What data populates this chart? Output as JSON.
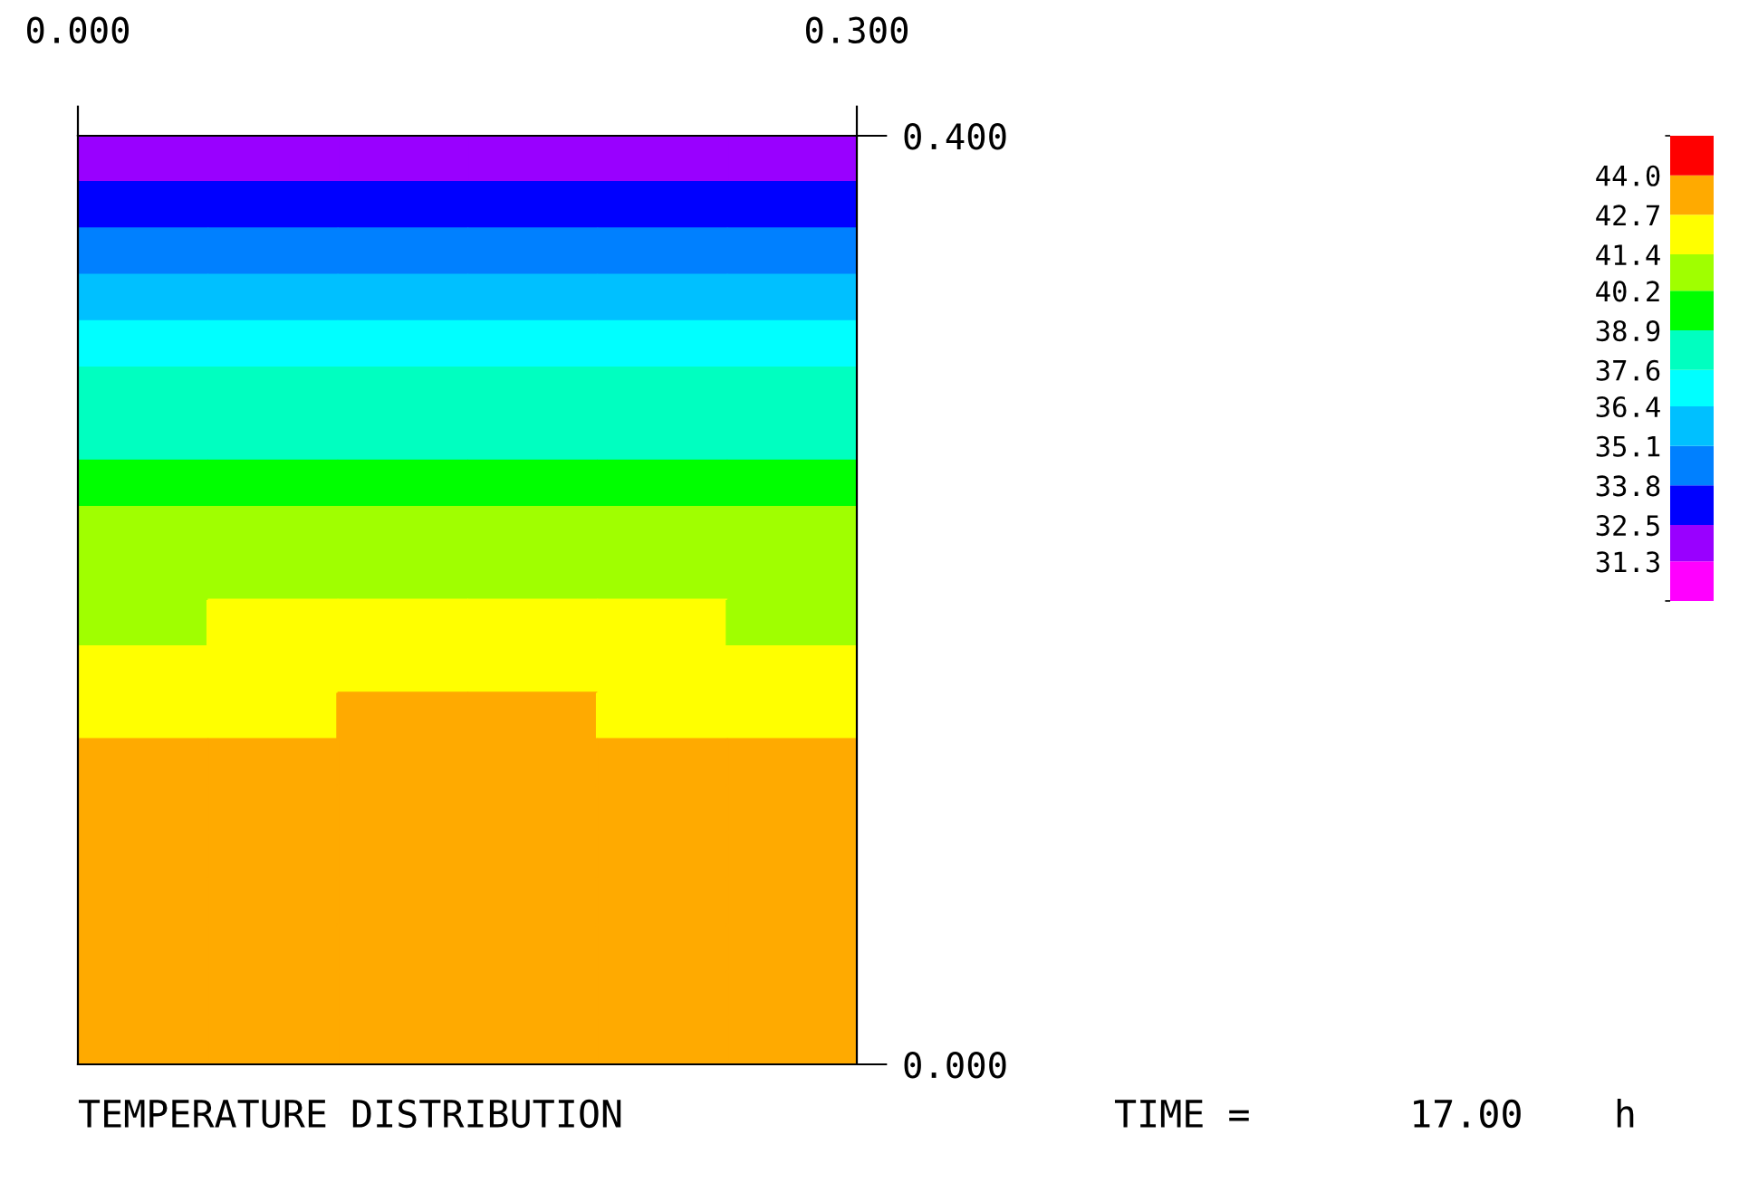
{
  "chart_data": {
    "type": "heatmap",
    "title": "TEMPERATURE DISTRIBUTION",
    "annotations": [
      "TIME =       17.00    h"
    ],
    "xlim": [
      0,
      0.3
    ],
    "ylim": [
      0,
      0.4
    ],
    "xticks": [
      {
        "value": 0,
        "label": "0.000"
      },
      {
        "value": 0.3,
        "label": "0.300"
      }
    ],
    "yticks": [
      {
        "value": 0,
        "label": "0.000"
      },
      {
        "value": 0.4,
        "label": "0.400"
      }
    ],
    "clim": [
      30.0,
      45.3
    ],
    "cticks": [
      31.3,
      32.5,
      33.8,
      35.1,
      36.4,
      37.6,
      38.9,
      40.2,
      41.4,
      42.7,
      {
        "value": 44,
        "label": "44.0"
      }
    ],
    "colors": [
      "#ff00ff",
      "#9900ff",
      "#0000ff",
      "#0080ff",
      "#00c0ff",
      "#00ffff",
      "#00ffc0",
      "#00ff00",
      "#a0ff00",
      "#ffff00",
      "#ffaa00",
      "#ff0000"
    ],
    "cells": [
      [
        31.9,
        31.9,
        31.9,
        31.9,
        31.9,
        31.9
      ],
      [
        33.15,
        33.15,
        33.15,
        33.15,
        33.15,
        33.15
      ],
      [
        34.45,
        34.45,
        34.45,
        34.45,
        34.45,
        34.45
      ],
      [
        35.75,
        35.75,
        35.75,
        35.75,
        35.75,
        35.75
      ],
      [
        37.0,
        37.0,
        37.0,
        37.0,
        37.0,
        37.0
      ],
      [
        38.25,
        38.25,
        38.25,
        38.25,
        38.25,
        38.25
      ],
      [
        38.25,
        38.25,
        38.25,
        38.25,
        38.25,
        38.25
      ],
      [
        39.55,
        39.55,
        39.55,
        39.55,
        39.55,
        39.55
      ],
      [
        40.8,
        40.8,
        40.8,
        40.8,
        40.8,
        40.8
      ],
      [
        40.8,
        40.8,
        40.8,
        40.8,
        40.8,
        40.8
      ],
      [
        40.8,
        42.05,
        42.05,
        42.05,
        42.05,
        40.8
      ],
      [
        42.05,
        42.05,
        42.05,
        42.05,
        42.05,
        42.05
      ],
      [
        42.05,
        42.05,
        43.35,
        43.35,
        42.05,
        42.05
      ],
      [
        43.35,
        43.35,
        43.35,
        43.35,
        43.35,
        43.35
      ],
      [
        43.35,
        43.35,
        43.35,
        43.35,
        43.35,
        43.35
      ],
      [
        43.35,
        43.35,
        43.35,
        43.35,
        43.35,
        43.35
      ],
      [
        43.35,
        43.35,
        43.35,
        43.35,
        43.35,
        43.35
      ],
      [
        43.35,
        43.35,
        43.35,
        43.35,
        43.35,
        43.35
      ],
      [
        43.35,
        43.35,
        43.35,
        43.35,
        43.35,
        43.35
      ],
      [
        43.35,
        43.35,
        43.35,
        43.35,
        43.35,
        43.35
      ]
    ]
  }
}
